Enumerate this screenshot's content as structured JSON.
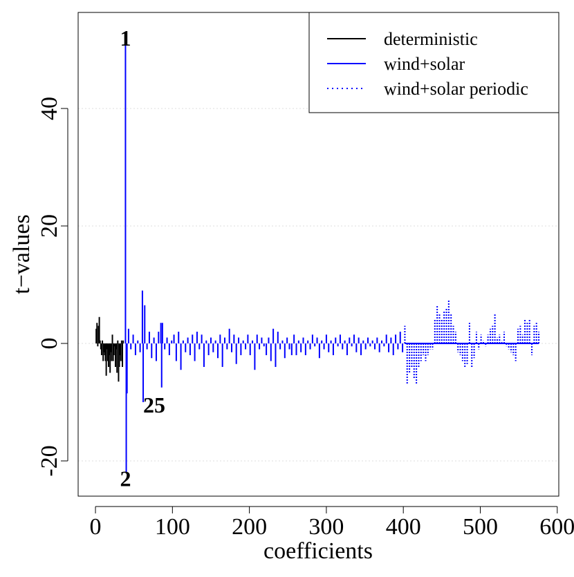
{
  "chart_data": {
    "type": "needle",
    "xlabel": "coefficients",
    "ylabel": "t−values",
    "xlim": [
      -22.5,
      602
    ],
    "ylim": [
      -26,
      56.35
    ],
    "xticks": [
      0,
      100,
      200,
      300,
      400,
      500,
      600
    ],
    "yticks": [
      -20,
      0,
      20,
      40
    ],
    "grid": true,
    "legend": "topright",
    "annotations": [
      {
        "text": "1",
        "x": 39,
        "y": 52
      },
      {
        "text": "2",
        "x": 39,
        "y": -23
      },
      {
        "text": "25",
        "x": 62,
        "y": -10.5
      }
    ],
    "series": [
      {
        "name": "deterministic",
        "color": "#000000",
        "style": "solid",
        "x": [
          1,
          2,
          3,
          4,
          5,
          6,
          7,
          8,
          9,
          10,
          11,
          12,
          13,
          14,
          15,
          16,
          17,
          18,
          19,
          20,
          21,
          22,
          23,
          24,
          25,
          26,
          27,
          28,
          29,
          30,
          31,
          32,
          33,
          34,
          35,
          36,
          37
        ],
        "values": [
          2.5,
          3.5,
          -0.5,
          3,
          4.5,
          0.5,
          -1,
          -2,
          0.5,
          -3,
          -1.5,
          -2,
          -3,
          -5.5,
          -1,
          -3,
          -4,
          -2,
          -5,
          -1.5,
          -3,
          1.5,
          -3,
          -2,
          -0.5,
          -4,
          -1,
          -5,
          0.5,
          -6.5,
          -4,
          -2,
          -3,
          0.5,
          -4,
          0.5,
          0
        ]
      },
      {
        "name": "wind+solar",
        "color": "#0000ff",
        "style": "solid",
        "x": [
          39,
          40,
          41,
          43,
          46,
          49,
          52,
          55,
          58,
          61,
          62,
          64,
          67,
          70,
          73,
          76,
          79,
          82,
          85,
          86,
          87,
          90,
          93,
          96,
          99,
          102,
          105,
          108,
          111,
          114,
          117,
          120,
          123,
          126,
          129,
          132,
          135,
          138,
          141,
          144,
          147,
          150,
          153,
          156,
          159,
          162,
          165,
          168,
          171,
          174,
          177,
          180,
          183,
          186,
          189,
          192,
          195,
          198,
          201,
          204,
          207,
          210,
          213,
          216,
          219,
          222,
          225,
          228,
          231,
          234,
          237,
          240,
          243,
          246,
          249,
          252,
          255,
          258,
          261,
          264,
          267,
          270,
          273,
          276,
          279,
          282,
          285,
          288,
          291,
          294,
          297,
          300,
          303,
          306,
          309,
          312,
          315,
          318,
          321,
          324,
          327,
          330,
          333,
          336,
          339,
          342,
          345,
          348,
          351,
          354,
          357,
          360,
          363,
          366,
          369,
          372,
          375,
          378,
          381,
          384,
          387,
          390,
          393,
          396,
          399
        ],
        "values": [
          52,
          -22,
          -8.5,
          2.5,
          -1,
          1.5,
          -2,
          0.5,
          -1.5,
          9,
          -10,
          6.5,
          -1,
          2,
          -2.5,
          1,
          -3,
          2,
          3.5,
          -7.5,
          3.5,
          -1,
          1,
          -2,
          0.5,
          1.5,
          -3,
          2,
          -4.5,
          0.5,
          -1.5,
          1,
          -2,
          1.5,
          -3,
          2,
          -1,
          1.5,
          -4,
          0.5,
          -2,
          1,
          -1.5,
          0.5,
          -2.5,
          1.5,
          -4,
          1,
          -1,
          2.5,
          -1.5,
          1.5,
          -3.5,
          1,
          -2,
          0.5,
          -1,
          1.5,
          -2,
          0.5,
          -4.5,
          1.5,
          -1,
          1,
          -0.5,
          -2,
          1,
          -3,
          2.5,
          -4,
          2,
          -1,
          0.5,
          -2.5,
          1,
          -1,
          -2,
          1.5,
          -2,
          0.5,
          -1.5,
          1,
          -2,
          0.5,
          -1,
          1.5,
          -0.5,
          1,
          -2.5,
          0.5,
          -1,
          1.5,
          -1.5,
          0.5,
          -2,
          1,
          -0.5,
          1.5,
          -1,
          0.5,
          -2,
          1,
          -0.5,
          1.5,
          -1.5,
          1,
          -2,
          0.5,
          -1,
          1,
          -0.5,
          0.5,
          -1,
          1,
          -1.5,
          0.5,
          -0.5,
          1.5,
          -1.5,
          1,
          -2,
          1.5,
          -1,
          2,
          -1.5
        ]
      },
      {
        "name": "wind+solar periodic",
        "color": "#0000ff",
        "style": "dotted",
        "x": [
          402,
          405,
          408,
          411,
          414,
          417,
          420,
          423,
          426,
          429,
          432,
          435,
          438,
          441,
          444,
          447,
          450,
          453,
          456,
          459,
          462,
          465,
          468,
          471,
          474,
          477,
          480,
          483,
          486,
          489,
          492,
          495,
          498,
          501,
          504,
          507,
          510,
          513,
          516,
          519,
          522,
          525,
          528,
          531,
          534,
          537,
          540,
          543,
          546,
          549,
          552,
          555,
          558,
          561,
          564,
          567,
          570,
          573,
          576
        ],
        "values": [
          3,
          -7,
          -5,
          -4,
          -6,
          -7,
          -4,
          -3,
          -2,
          -3,
          -2,
          -1,
          -1,
          4,
          6.5,
          5,
          4,
          5.5,
          6,
          7.5,
          5,
          3,
          2,
          -1.5,
          -2,
          -3,
          -4,
          -3.5,
          3.5,
          -4,
          -2.5,
          2,
          -1,
          1.5,
          0.5,
          -0.5,
          1.5,
          2.5,
          3,
          5,
          1,
          1.5,
          0.5,
          2,
          -0.5,
          -1,
          -1.5,
          -2,
          -3,
          2.5,
          3,
          1.5,
          4,
          3.5,
          4,
          -2,
          3,
          3.5,
          2
        ]
      }
    ]
  }
}
